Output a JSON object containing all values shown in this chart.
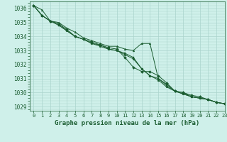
{
  "title": "Graphe pression niveau de la mer (hPa)",
  "bg_color": "#cff0ea",
  "grid_color": "#aad4cc",
  "line_color": "#1a5c30",
  "marker_color": "#1a5c30",
  "xlim": [
    -0.5,
    23
  ],
  "ylim": [
    1028.7,
    1036.5
  ],
  "yticks": [
    1029,
    1030,
    1031,
    1032,
    1033,
    1034,
    1035,
    1036
  ],
  "xticks": [
    0,
    1,
    2,
    3,
    4,
    5,
    6,
    7,
    8,
    9,
    10,
    11,
    12,
    13,
    14,
    15,
    16,
    17,
    18,
    19,
    20,
    21,
    22,
    23
  ],
  "series": [
    [
      1036.2,
      1035.9,
      1035.1,
      1035.0,
      1034.6,
      1034.3,
      1033.9,
      1033.7,
      1033.5,
      1033.3,
      1033.3,
      1033.1,
      1033.0,
      1033.5,
      1033.5,
      1031.0,
      1030.6,
      1030.1,
      1030.0,
      1029.7,
      1029.6,
      1029.5,
      1029.3,
      1029.2
    ],
    [
      1036.2,
      1035.5,
      1035.1,
      1034.9,
      1034.5,
      1034.0,
      1033.8,
      1033.6,
      1033.4,
      1033.2,
      1033.1,
      1032.5,
      1031.8,
      1031.5,
      1031.5,
      1031.2,
      1030.7,
      1030.1,
      1030.0,
      1029.8,
      1029.7,
      1029.5,
      1029.3,
      1029.2
    ],
    [
      1036.2,
      1035.5,
      1035.1,
      1034.8,
      1034.4,
      1034.0,
      1033.8,
      1033.5,
      1033.4,
      1033.1,
      1033.0,
      1032.8,
      1032.5,
      1031.7,
      1031.2,
      1031.0,
      1030.5,
      1030.1,
      1029.9,
      1029.7,
      1029.6,
      1029.5,
      1029.3,
      1029.2
    ],
    [
      1036.2,
      1035.5,
      1035.1,
      1034.9,
      1034.4,
      1034.0,
      1033.8,
      1033.5,
      1033.3,
      1033.1,
      1033.0,
      1032.7,
      1032.4,
      1031.7,
      1031.2,
      1030.9,
      1030.4,
      1030.1,
      1029.9,
      1029.7,
      1029.6,
      1029.5,
      1029.3,
      1029.2
    ]
  ],
  "tick_fontsize": 5.0,
  "ytick_fontsize": 5.5,
  "title_fontsize": 6.5,
  "linewidth": 0.7,
  "markersize": 2.0
}
